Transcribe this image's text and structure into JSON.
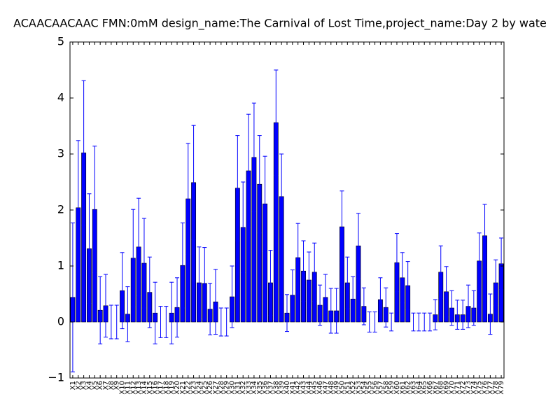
{
  "chart_data": {
    "type": "bar",
    "title": "ACAACAACAAC  FMN:0mM  design_name:The Carnival of Lost Time,project_name:Day 2 by wate",
    "categories": [
      "X1",
      "X2",
      "X3",
      "X4",
      "X5",
      "X6",
      "X7",
      "X8",
      "X9",
      "X10",
      "X11",
      "X12",
      "X13",
      "X14",
      "X15",
      "X16",
      "X17",
      "X18",
      "X19",
      "X20",
      "X21",
      "X22",
      "X23",
      "X24",
      "X25",
      "X26",
      "X27",
      "X28",
      "X29",
      "X30",
      "X31",
      "X32",
      "X33",
      "X34",
      "X35",
      "X36",
      "X37",
      "X38",
      "X39",
      "X40",
      "X41",
      "X42",
      "X43",
      "X44",
      "X45",
      "X46",
      "X47",
      "X48",
      "X49",
      "X50",
      "X51",
      "X52",
      "X53",
      "X54",
      "X55",
      "X56",
      "X57",
      "X58",
      "X59",
      "X60",
      "X61",
      "X62",
      "X63",
      "X64",
      "X65",
      "X66",
      "X67",
      "X68",
      "X69",
      "X70",
      "X71",
      "X72",
      "X73",
      "X74",
      "X75",
      "X76",
      "X77",
      "X78",
      "X79"
    ],
    "values": [
      0.44,
      2.04,
      3.02,
      1.31,
      2.01,
      0.21,
      0.29,
      0,
      0,
      0.56,
      0.14,
      1.14,
      1.34,
      1.05,
      0.53,
      0.16,
      0,
      0,
      0.16,
      0.26,
      1.01,
      2.2,
      2.49,
      0.7,
      0.69,
      0.23,
      0.36,
      0,
      0,
      0.45,
      2.39,
      1.69,
      2.7,
      2.94,
      2.46,
      2.11,
      0.7,
      3.56,
      2.24,
      0.16,
      0.48,
      1.15,
      0.91,
      0.75,
      0.89,
      0.3,
      0.44,
      0.2,
      0.2,
      1.7,
      0.7,
      0.41,
      1.36,
      0.28,
      0,
      0,
      0.4,
      0.26,
      0,
      1.06,
      0.79,
      0.65,
      0,
      0,
      0,
      0,
      0.13,
      0.89,
      0.54,
      0.25,
      0.13,
      0.13,
      0.28,
      0.25,
      1.09,
      1.54,
      0.14,
      0.7,
      1.04
    ],
    "errors": [
      1.33,
      1.2,
      1.29,
      0.98,
      1.13,
      0.6,
      0.56,
      0.3,
      0.3,
      0.68,
      0.49,
      0.87,
      0.87,
      0.8,
      0.63,
      0.55,
      0.28,
      0.28,
      0.55,
      0.53,
      0.76,
      0.99,
      1.02,
      0.64,
      0.64,
      0.46,
      0.58,
      0.25,
      0.25,
      0.55,
      0.94,
      0.81,
      1.01,
      0.97,
      0.87,
      0.85,
      0.58,
      0.94,
      0.76,
      0.33,
      0.45,
      0.61,
      0.54,
      0.5,
      0.52,
      0.36,
      0.41,
      0.4,
      0.4,
      0.64,
      0.46,
      0.4,
      0.58,
      0.33,
      0.18,
      0.18,
      0.39,
      0.35,
      0.16,
      0.52,
      0.45,
      0.43,
      0.16,
      0.16,
      0.16,
      0.16,
      0.27,
      0.47,
      0.45,
      0.31,
      0.26,
      0.26,
      0.38,
      0.31,
      0.5,
      0.56,
      0.36,
      0.41,
      0.46
    ],
    "color": "#0000ff",
    "ylim": [
      -1,
      5
    ],
    "yticks": [
      {
        "value": -1,
        "label": "−1"
      },
      0,
      1,
      2,
      3,
      4,
      5
    ]
  }
}
